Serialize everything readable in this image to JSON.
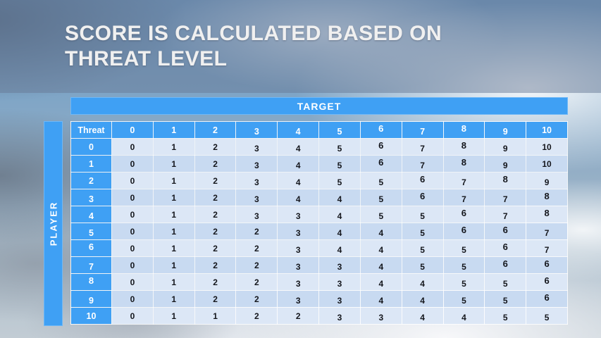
{
  "slide": {
    "title": "SCORE IS CALCULATED BASED ON THREAT LEVEL"
  },
  "chart_data": {
    "type": "table",
    "title": "SCORE IS CALCULATED BASED ON THREAT LEVEL",
    "column_group_label": "TARGET",
    "row_group_label": "PLAYER",
    "column_header_label": "Threat",
    "columns": [
      "0",
      "1",
      "2",
      "3",
      "4",
      "5",
      "6",
      "7",
      "8",
      "9",
      "10"
    ],
    "row_labels": [
      "0",
      "1",
      "2",
      "3",
      "4",
      "5",
      "6",
      "7",
      "8",
      "9",
      "10"
    ],
    "rows": [
      [
        0,
        1,
        2,
        3,
        4,
        5,
        6,
        7,
        8,
        9,
        10
      ],
      [
        0,
        1,
        2,
        3,
        4,
        5,
        6,
        7,
        8,
        9,
        10
      ],
      [
        0,
        1,
        2,
        3,
        4,
        5,
        5,
        6,
        7,
        8,
        9
      ],
      [
        0,
        1,
        2,
        3,
        4,
        4,
        5,
        6,
        7,
        7,
        8
      ],
      [
        0,
        1,
        2,
        3,
        3,
        4,
        5,
        5,
        6,
        7,
        8
      ],
      [
        0,
        1,
        2,
        2,
        3,
        4,
        4,
        5,
        6,
        6,
        7
      ],
      [
        0,
        1,
        2,
        2,
        3,
        4,
        4,
        5,
        5,
        6,
        7
      ],
      [
        0,
        1,
        2,
        2,
        3,
        3,
        4,
        5,
        5,
        6,
        6
      ],
      [
        0,
        1,
        2,
        2,
        3,
        3,
        4,
        4,
        5,
        5,
        6
      ],
      [
        0,
        1,
        2,
        2,
        3,
        3,
        4,
        4,
        5,
        5,
        6
      ],
      [
        0,
        1,
        1,
        2,
        2,
        3,
        3,
        4,
        4,
        5,
        5
      ]
    ]
  },
  "colors": {
    "header_blue": "#3FA0F4",
    "row_light": "#DCE7F6",
    "row_dark": "#C8DAF1",
    "cell_text": "#14161C"
  }
}
